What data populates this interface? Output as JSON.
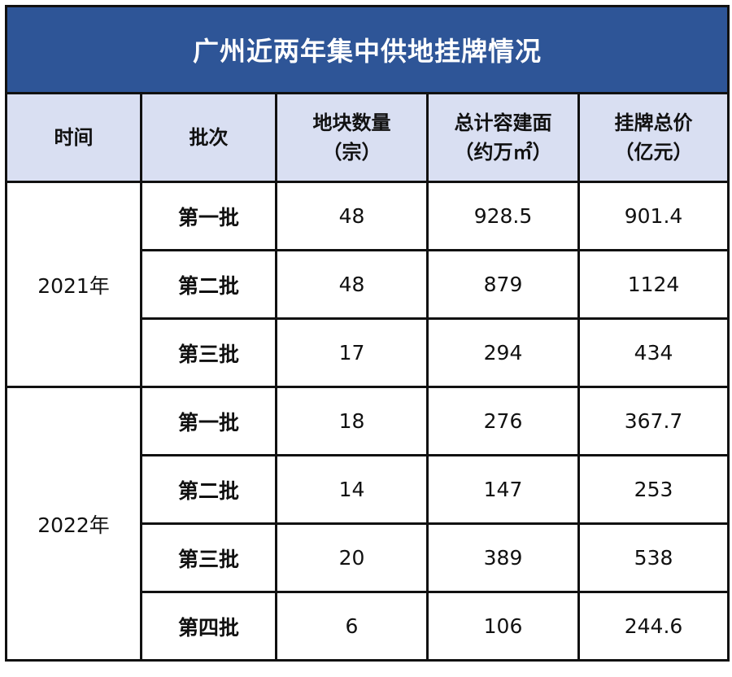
{
  "title": "广州近两年集中供地挂牌情况",
  "headers": [
    {
      "line1": "时间",
      "line2": ""
    },
    {
      "line1": "批次",
      "line2": ""
    },
    {
      "line1": "地块数量",
      "line2": "（宗）"
    },
    {
      "line1": "总计容建面",
      "line2": "（约万㎡）"
    },
    {
      "line1": "挂牌总价",
      "line2": "（亿元）"
    }
  ],
  "groups": [
    {
      "year": "2021年",
      "rows": [
        {
          "batch": "第一批",
          "count": "48",
          "area": "928.5",
          "price": "901.4"
        },
        {
          "batch": "第二批",
          "count": "48",
          "area": "879",
          "price": "1124"
        },
        {
          "batch": "第三批",
          "count": "17",
          "area": "294",
          "price": "434"
        }
      ]
    },
    {
      "year": "2022年",
      "rows": [
        {
          "batch": "第一批",
          "count": "18",
          "area": "276",
          "price": "367.7"
        },
        {
          "batch": "第二批",
          "count": "14",
          "area": "147",
          "price": "253"
        },
        {
          "batch": "第三批",
          "count": "20",
          "area": "389",
          "price": "538"
        },
        {
          "batch": "第四批",
          "count": "6",
          "area": "106",
          "price": "244.6"
        }
      ]
    }
  ]
}
